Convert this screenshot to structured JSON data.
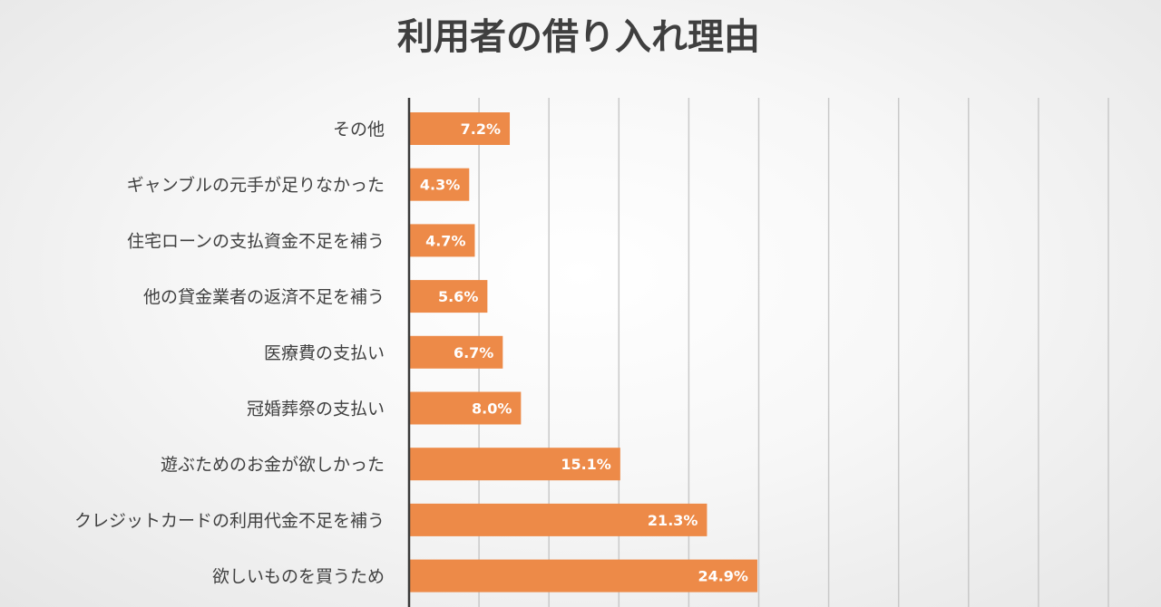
{
  "chart_data": {
    "type": "bar",
    "orientation": "horizontal",
    "title": "利用者の借り入れ理由",
    "categories": [
      "その他",
      "ギャンブルの元手が足りなかった",
      "住宅ローンの支払資金不足を補う",
      "他の貸金業者の返済不足を補う",
      "医療費の支払い",
      "冠婚葬祭の支払い",
      "遊ぶためのお金が欲しかった",
      "クレジットカードの利用代金不足を補う",
      "欲しいものを買うため"
    ],
    "values": [
      7.2,
      4.3,
      4.7,
      5.6,
      6.7,
      8.0,
      15.1,
      21.3,
      24.9
    ],
    "data_labels": [
      "7.2%",
      "4.3%",
      "4.7%",
      "5.6%",
      "6.7%",
      "8.0%",
      "15.1%",
      "21.3%",
      "24.9%"
    ],
    "xlim": [
      0,
      50
    ],
    "grid": true,
    "legend": "none",
    "bar_color": "#ED8A48",
    "gridline_color": "#c9c9c9",
    "axis_color": "#3a3a3a"
  }
}
